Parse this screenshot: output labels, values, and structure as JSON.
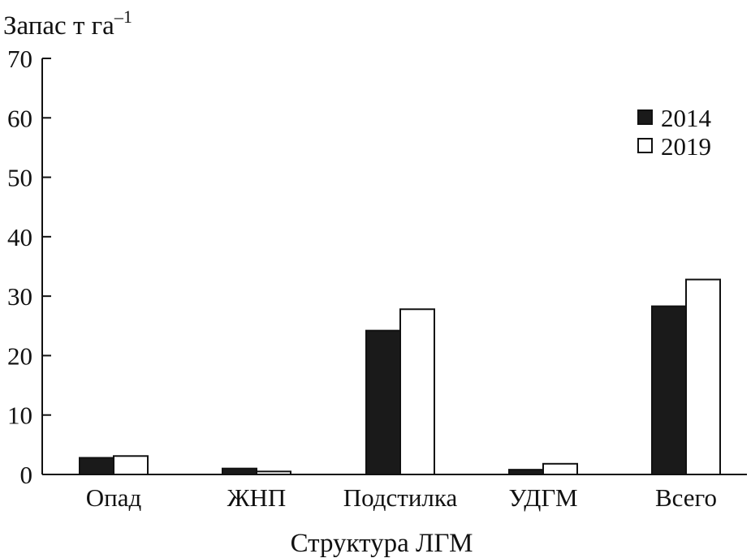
{
  "chart_data": {
    "type": "bar",
    "ylabel": "Запас т га",
    "ylabel_superscript": "–1",
    "xlabel": "Структура ЛГМ",
    "ylim": [
      0,
      70
    ],
    "yticks": [
      "0",
      "10",
      "20",
      "30",
      "40",
      "50",
      "60",
      "70"
    ],
    "grid": false,
    "legend_position": "top-right",
    "categories": [
      "Опад",
      "ЖНП",
      "Подстилка",
      "УДГМ",
      "Всего"
    ],
    "series": [
      {
        "name": "2014",
        "fill": "#1a1a1a",
        "values": [
          2.8,
          1.0,
          24.2,
          0.8,
          28.3
        ]
      },
      {
        "name": "2019",
        "fill": "#ffffff",
        "values": [
          3.1,
          0.5,
          27.8,
          1.8,
          32.8
        ]
      }
    ]
  }
}
